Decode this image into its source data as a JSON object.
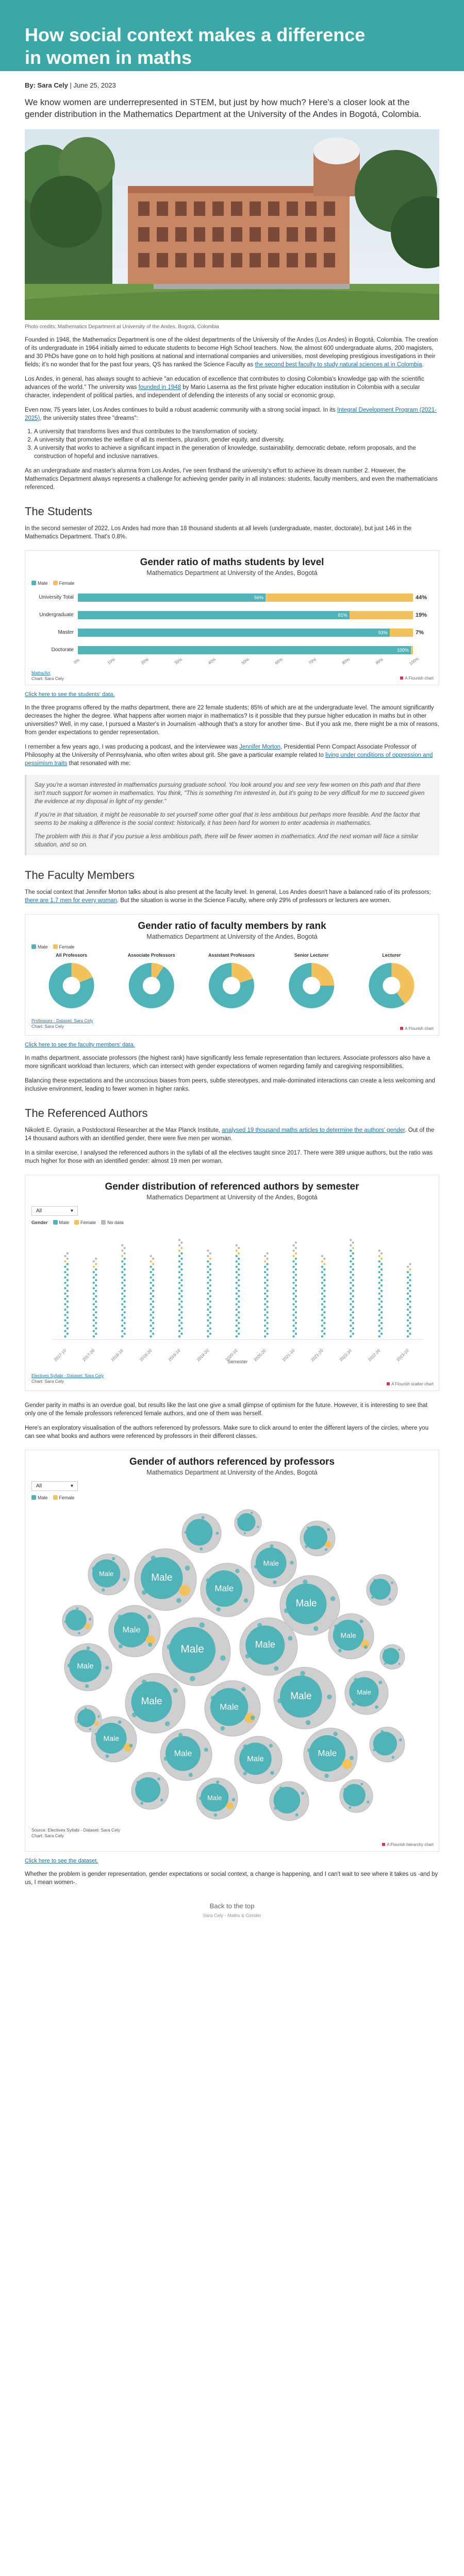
{
  "title": "How social context makes a difference in women in maths",
  "byline": {
    "by": "By: Sara Cely",
    "date": "June 25, 2023"
  },
  "lede": "We know women are underrepresented in STEM, but just by how much? Here's a closer look at the gender distribution in the Mathematics Department at the University of the Andes in Bogotá, Colombia.",
  "hero_caption": "Photo credits: Mathematics Department at University of the Andes, Bogotá, Colombia",
  "intro": {
    "p1": "Founded in 1948, the Mathematics Department is one of the oldest departments of the University of the Andes (Los Andes) in Bogotá, Colombia. The creation of its undergraduate in 1964 initially aimed to educate students to become High School teachers. Now, the almost 600 undergraduate alums, 200 magisters, and 30 PhDs have gone on to hold high positions at national and international companies and universities, most developing prestigious investigations in their fields; it's no wonder that for the past four years, QS has ranked the Science Faculty as",
    "p1_link": "the second best faculty to study natural sciences at in Colombia",
    "p2a": "Los Andes, in general, has always sought to achieve \"an education of excellence that contributes to closing Colombia's knowledge gap with the scientific advances of the world.\" The university was",
    "p2_link": "founded in 1948",
    "p2b": "by Mario Laserna as the first private higher education institution in Colombia with a secular character, independent of political parties, and independent of defending the interests of any social or economic group.",
    "p3a": "Even now, 75 years later, Los Andes continues to build a robust academic community with a strong social impact. In its",
    "p3_link": "Integral Development Program (2021-2025)",
    "p3b": ", the university states three \"dreams\":",
    "dreams": [
      "A university that transforms lives and thus contributes to the transformation of society.",
      "A university that promotes the welfare of all its members, pluralism, gender equity, and diversity.",
      "A university that works to achieve a significant impact in the generation of knowledge, sustainability, democratic debate, reform proposals, and the construction of hopeful and inclusive narratives."
    ],
    "p4": "As an undergraduate and master's alumna from Los Andes, I've seen firsthand the university's effort to achieve its dream number 2. However, the Mathematics Department always represents a challenge for achieving gender parity in all instances: students, faculty members, and even the mathematicians referenced."
  },
  "students": {
    "heading": "The Students",
    "p1": "In the second semester of 2022, Los Andes had more than 18 thousand students at all levels (undergraduate, master, doctorate), but just 146 in the Mathematics Department. That's 0.8%.",
    "chart_link": "Click here to see the students' data.",
    "p2": "In the three programs offered by the maths department, there are 22 female students; 85% of which are at the undergraduate level. The amount significantly decreases the higher the degree. What happens after women major in mathematics? Is it possible that they pursue higher education in maths but in other universities? Well, in my case, I pursued a Master's in Journalism -although that's a story for another time-. But if you ask me, there might be a mix of reasons, from gender expectations to gender representation.",
    "p3a": "I remember a few years ago, I was producing a podcast, and the interviewee was",
    "p3_link1": "Jennifer Morton",
    "p3b": ", Presidential Penn Compact Associate Professor of Philosophy at the University of Pennsylvania, who often writes about grit. She gave a particular example related to",
    "p3_link2": "living under conditions of oppression and pessimism traits",
    "p3c": "that resonated with me:",
    "quote": [
      "Say you're a woman interested in mathematics pursuing graduate school. You look around you and see very few women on this path and that there isn't much support for women in mathematics. You think, \"This is something I'm interested in, but it's going to be very difficult for me to succeed given the evidence at my disposal in light of my gender.\"",
      "If you're in that situation, it might be reasonable to set yourself some other goal that is less ambitious but perhaps more feasible. And the factor that seems to be making a difference is the social context: historically, it has been hard for women to enter academia in mathematics.",
      "The problem with this is that if you pursue a less ambitious path, there will be fewer women in mathematics. And the next woman will face a similar situation, and so on."
    ]
  },
  "faculty": {
    "heading": "The Faculty Members",
    "p1a": "The social context that Jennifer Morton talks about is also present at the faculty level. In general, Los Andes doesn't have a balanced ratio of its professors;",
    "p1_link": "there are 1.7 men for every woman",
    "p1b": ". But the situation is worse in the Science Faculty, where only 29% of professors or lecturers are women.",
    "chart_link": "Click here to see the faculty members' data.",
    "p2": "In maths department, associate professors (the highest rank) have significantly less female representation than lecturers. Associate professors also have a more significant workload than lecturers, which can intersect with gender expectations of women regarding family and caregiving responsibilities.",
    "p3": "Balancing these expectations and the unconscious biases from peers, subtle stereotypes, and male-dominated interactions can create a less welcoming and inclusive environment, leading to fewer women in higher ranks."
  },
  "authors": {
    "heading": "The Referenced Authors",
    "p1a": "Nikolett E. Gyrasin, a Postdoctoral Researcher at the Max Planck Institute,",
    "p1_link": "analysed 19 thousand maths articles to determine the authors' gender",
    "p1b": ". Out of the 14 thousand authors with an identified gender, there were five men per woman.",
    "p2": "In a similar exercise, I analysed the referenced authors in the syllabi of all the electives taught since 2017. There were 389 unique authors, but the ratio was much higher for those with an identified gender: almost 19 men per woman.",
    "p3": "Gender parity in maths is an overdue goal, but results like the last one give a small glimpse of optimism for the future. However, it is interesting to see that only one of the female professors referenced female authors, and one of them was herself.",
    "p4": "Here's an exploratory visualisation of the authors referenced by professors. Make sure to click around to enter the different layers of the circles, where you can see what books and authors were referenced by professors in their different classes.",
    "chart_link": "Click here to see the dataset.",
    "closing": "Whether the problem is gender representation, gender expectations or social context, a change is happening, and I can't wait to see where it takes us -and by us, I mean women-."
  },
  "legend": {
    "male": "Male",
    "female": "Female",
    "no_data": "No data"
  },
  "colors": {
    "male": "#4fb3b8",
    "female": "#f3c25b",
    "no_data": "#b9b9b9",
    "accent": "#3aa8a4"
  },
  "chart_data": [
    {
      "type": "bar",
      "title": "Gender ratio of maths students by level",
      "subtitle": "Mathematics Department at University of the Andes, Bogotá",
      "categories": [
        "University Total",
        "Undergraduate",
        "Master",
        "Doctorate"
      ],
      "series": [
        {
          "name": "Male",
          "values": [
            56,
            81,
            93,
            100
          ]
        },
        {
          "name": "Female",
          "values": [
            44,
            19,
            7,
            0
          ]
        }
      ],
      "female_labels": [
        "44%",
        "19%",
        "7%",
        ""
      ],
      "male_labels": [
        "56%",
        "81%",
        "93%",
        "100%"
      ],
      "xticks": [
        "0%",
        "10%",
        "20%",
        "30%",
        "40%",
        "50%",
        "60%",
        "70%",
        "80%",
        "90%",
        "100%"
      ],
      "source": "Maths/Art",
      "credit": "Chart: Sara Cely",
      "brand": "A Flourish chart"
    },
    {
      "type": "pie",
      "title": "Gender ratio of faculty members by rank",
      "subtitle": "Mathematics Department at University of the Andes, Bogotá",
      "panels": [
        {
          "label": "All Professors",
          "female": 19,
          "male": 81
        },
        {
          "label": "Associate Professors",
          "female": 9,
          "male": 91
        },
        {
          "label": "Assistant Professors",
          "female": 20,
          "male": 80
        },
        {
          "label": "Senior Lecturer",
          "female": 25,
          "male": 75
        },
        {
          "label": "Lecturer",
          "female": 40,
          "male": 60
        }
      ],
      "source": "Professors - Dataset: Sara Cely",
      "credit": "Chart: Sara Cely",
      "brand": "A Flourish chart"
    },
    {
      "type": "scatter",
      "title": "Gender distribution of referenced authors by semester",
      "subtitle": "Mathematics Department at University of the Andes, Bogotá",
      "dropdown": "All",
      "gender_label": "Gender",
      "semesters": [
        "2017-10",
        "2017-20",
        "2018-10",
        "2018-20",
        "2019-10",
        "2019-20",
        "2020-10",
        "2020-20",
        "2021-10",
        "2021-20",
        "2022-10",
        "2022-20",
        "2023-10"
      ],
      "xlabel": "Semester",
      "male_counts": [
        28,
        26,
        30,
        27,
        32,
        29,
        31,
        28,
        30,
        27,
        33,
        29,
        25
      ],
      "female_counts": [
        1,
        2,
        1,
        2,
        2,
        1,
        2,
        1,
        2,
        2,
        1,
        2,
        1
      ],
      "nodata_counts": [
        3,
        2,
        4,
        2,
        3,
        3,
        2,
        3,
        4,
        2,
        3,
        2,
        2
      ],
      "source": "Electives Syllabi - Dataset: Sara Cely",
      "credit": "Chart: Sara Cely",
      "brand": "A Flourish scatter chart"
    },
    {
      "type": "bubble",
      "title": "Gender of authors referenced by professors",
      "subtitle": "Mathematics Department at University of the Andes, Bogotá",
      "dropdown": "All",
      "bubble_label": "Male",
      "source": "Source: Electives Syllabi - Dataset: Sara Cely",
      "credit": "Chart: Sara Cely",
      "brand": "A Flourish hierarchy chart"
    }
  ],
  "footer": {
    "back_top": "Back to the top",
    "note": "Sara Cely - Maths & Gender"
  }
}
